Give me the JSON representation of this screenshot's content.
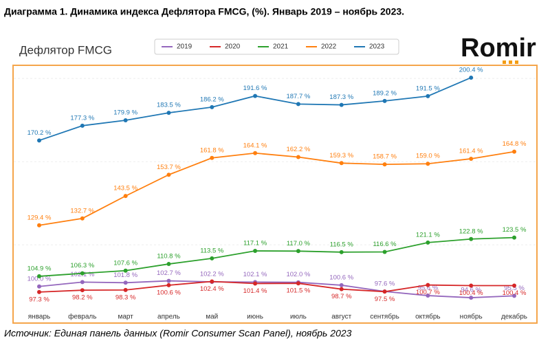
{
  "header": "Диаграмма 1. Динамика индекса Дефлятора FMCG, (%). Январь 2019 – ноябрь 2023.",
  "logo": "Romir",
  "source": "Источник: Единая панель данных (Romir Consumer Scan Panel), ноябрь 2023",
  "chart_data": {
    "type": "line",
    "title": "Дефлятор FMCG",
    "categories": [
      "январь",
      "февраль",
      "март",
      "апрель",
      "май",
      "июнь",
      "июль",
      "август",
      "сентябрь",
      "октябрь",
      "ноябрь",
      "декабрь"
    ],
    "ylim": [
      90,
      206
    ],
    "yticks": [
      120,
      160,
      200
    ],
    "grid": true,
    "legend": "top",
    "series": [
      {
        "name": "2019",
        "color": "#9467bd",
        "values": [
          100.0,
          102.1,
          101.8,
          102.7,
          102.2,
          102.1,
          102.0,
          100.6,
          97.6,
          95.6,
          94.6,
          95.5
        ],
        "value_labels": [
          "100.0 %",
          "102.1 %",
          "101.8 %",
          "102.7 %",
          "102.2 %",
          "102.1 %",
          "102.0 %",
          "100.6 %",
          "97.6 %",
          "95.6 %",
          "94.6 %",
          "95.5 %"
        ]
      },
      {
        "name": "2020",
        "color": "#d62728",
        "values": [
          97.3,
          98.2,
          98.3,
          100.6,
          102.4,
          101.4,
          101.5,
          98.7,
          97.5,
          100.7,
          100.4,
          100.4
        ],
        "value_labels": [
          "97.3 %",
          "98.2 %",
          "98.3 %",
          "100.6 %",
          "102.4 %",
          "101.4 %",
          "101.5 %",
          "98.7 %",
          "97.5 %",
          "100.7 %",
          "100.4 %",
          "100.4 %"
        ]
      },
      {
        "name": "2021",
        "color": "#2ca02c",
        "values": [
          104.9,
          106.3,
          107.6,
          110.8,
          113.5,
          117.1,
          117.0,
          116.5,
          116.6,
          121.1,
          122.8,
          123.5
        ],
        "value_labels": [
          "104.9 %",
          "106.3 %",
          "107.6 %",
          "110.8 %",
          "113.5 %",
          "117.1 %",
          "117.0 %",
          "116.5 %",
          "116.6 %",
          "121.1 %",
          "122.8 %",
          "123.5 %"
        ]
      },
      {
        "name": "2022",
        "color": "#ff7f0e",
        "values": [
          129.4,
          132.7,
          143.5,
          153.7,
          161.8,
          164.1,
          162.2,
          159.3,
          158.7,
          159.0,
          161.4,
          164.8
        ],
        "value_labels": [
          "129.4 %",
          "132.7 %",
          "143.5 %",
          "153.7 %",
          "161.8 %",
          "164.1 %",
          "162.2 %",
          "159.3 %",
          "158.7 %",
          "159.0 %",
          "161.4 %",
          "164.8 %"
        ]
      },
      {
        "name": "2023",
        "color": "#1f77b4",
        "values": [
          170.2,
          177.3,
          179.9,
          183.5,
          186.2,
          191.6,
          187.7,
          187.3,
          189.2,
          191.5,
          200.4,
          null
        ],
        "value_labels": [
          "170.2 %",
          "177.3 %",
          "179.9 %",
          "183.5 %",
          "186.2 %",
          "191.6 %",
          "187.7 %",
          "187.3 %",
          "189.2 %",
          "191.5 %",
          "200.4 %",
          null
        ]
      }
    ]
  }
}
